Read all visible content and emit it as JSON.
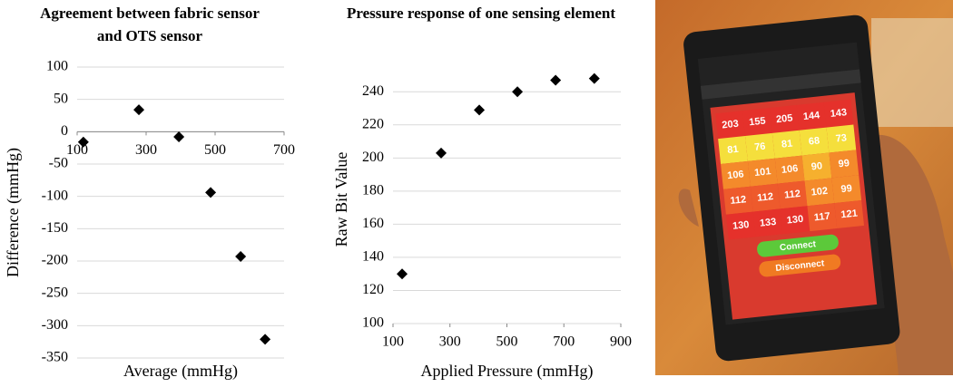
{
  "chart_data": [
    {
      "type": "scatter",
      "title": "Agreement between fabric sensor and OTS sensor",
      "x_label": "Average (mmHg)",
      "y_label": "Difference (mmHg)",
      "x": [
        118,
        279,
        395,
        487,
        574,
        645
      ],
      "values": [
        -16,
        34,
        -8,
        -94,
        -193,
        -321
      ],
      "color": "#000000",
      "marker": "diamond",
      "xlim": [
        100,
        700
      ],
      "xticks": [
        100,
        300,
        500,
        700
      ],
      "ylim": [
        -350,
        100
      ],
      "yticks": [
        -350,
        -300,
        -250,
        -200,
        -150,
        -100,
        -50,
        0,
        50,
        100
      ],
      "grid": true
    },
    {
      "type": "scatter",
      "title": "Pressure response of one sensing element",
      "x_label": "Applied Pressure (mmHg)",
      "y_label": "Raw Bit Value",
      "x": [
        132,
        269,
        403,
        537,
        671,
        807
      ],
      "values": [
        130,
        203,
        229,
        240,
        247,
        248
      ],
      "color": "#000000",
      "marker": "diamond",
      "xlim": [
        100,
        900
      ],
      "xticks": [
        100,
        300,
        500,
        700,
        900
      ],
      "ylim": [
        100,
        250
      ],
      "yticks": [
        100,
        120,
        140,
        160,
        180,
        200,
        220,
        240
      ],
      "grid": true
    }
  ],
  "photo": {
    "grid": [
      [
        203,
        155,
        205,
        144,
        143
      ],
      [
        81,
        76,
        81,
        68,
        73
      ],
      [
        106,
        101,
        106,
        90,
        99
      ],
      [
        112,
        112,
        112,
        102,
        99
      ],
      [
        130,
        133,
        130,
        117,
        121
      ]
    ],
    "buttons": [
      "Connect",
      "Disconnect"
    ]
  }
}
